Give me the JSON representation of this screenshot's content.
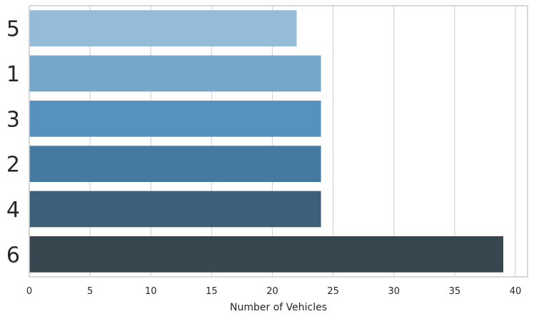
{
  "chart_data": {
    "type": "bar",
    "orientation": "horizontal",
    "categories": [
      "5",
      "1",
      "3",
      "2",
      "4",
      "6"
    ],
    "values": [
      22,
      24,
      24,
      24,
      24,
      39
    ],
    "bar_colors": [
      "#94bcd9",
      "#75a7c9",
      "#5791bd",
      "#4579a0",
      "#3e5f7a",
      "#37474f"
    ],
    "title": "",
    "xlabel": "Number of Vehicles",
    "ylabel": "",
    "xlim": [
      0,
      41
    ],
    "x_ticks": [
      0,
      5,
      10,
      15,
      20,
      25,
      30,
      35,
      40
    ],
    "grid": "x",
    "legend": "none",
    "colors": {
      "grid": "#d4d4d4",
      "frame": "#cccccc",
      "text": "#262626"
    }
  }
}
